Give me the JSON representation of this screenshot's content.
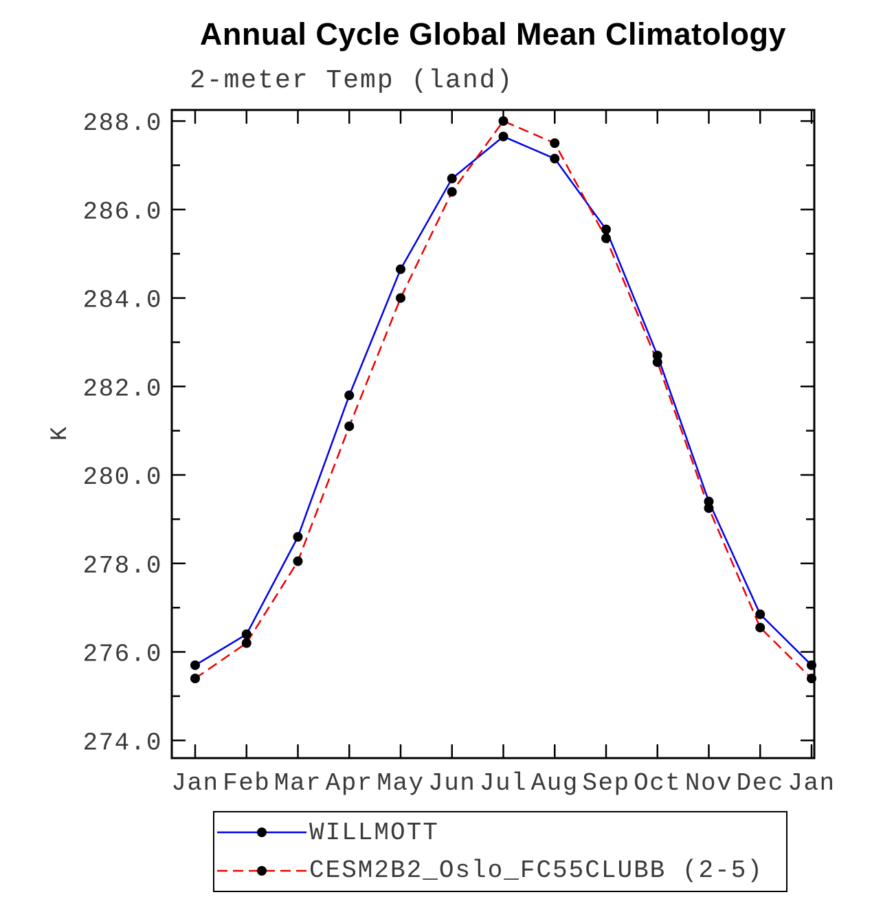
{
  "chart_data": {
    "type": "line",
    "title": "Annual Cycle Global Mean Climatology",
    "subtitle": "2-meter Temp (land)",
    "ylabel": "K",
    "xlabel": "",
    "categories": [
      "Jan",
      "Feb",
      "Mar",
      "Apr",
      "May",
      "Jun",
      "Jul",
      "Aug",
      "Sep",
      "Oct",
      "Nov",
      "Dec",
      "Jan"
    ],
    "ylim": [
      274.0,
      288.0
    ],
    "ytick_step": 2.0,
    "ytick_labels": [
      "274.0",
      "276.0",
      "278.0",
      "280.0",
      "282.0",
      "284.0",
      "286.0",
      "288.0"
    ],
    "grid": false,
    "legend_position": "bottom",
    "marker_color": "#000000",
    "series": [
      {
        "name": "WILLMOTT",
        "color": "#0000ee",
        "style": "solid",
        "values": [
          275.7,
          276.4,
          278.6,
          281.8,
          284.65,
          286.7,
          287.65,
          287.15,
          285.55,
          282.7,
          279.4,
          276.85,
          275.7
        ]
      },
      {
        "name": "CESM2B2_Oslo_FC55CLUBB (2-5)",
        "color": "#ee0000",
        "style": "dashed",
        "values": [
          275.4,
          276.2,
          278.05,
          281.1,
          284.0,
          286.4,
          288.0,
          287.5,
          285.35,
          282.55,
          279.25,
          276.55,
          275.4
        ]
      }
    ]
  }
}
